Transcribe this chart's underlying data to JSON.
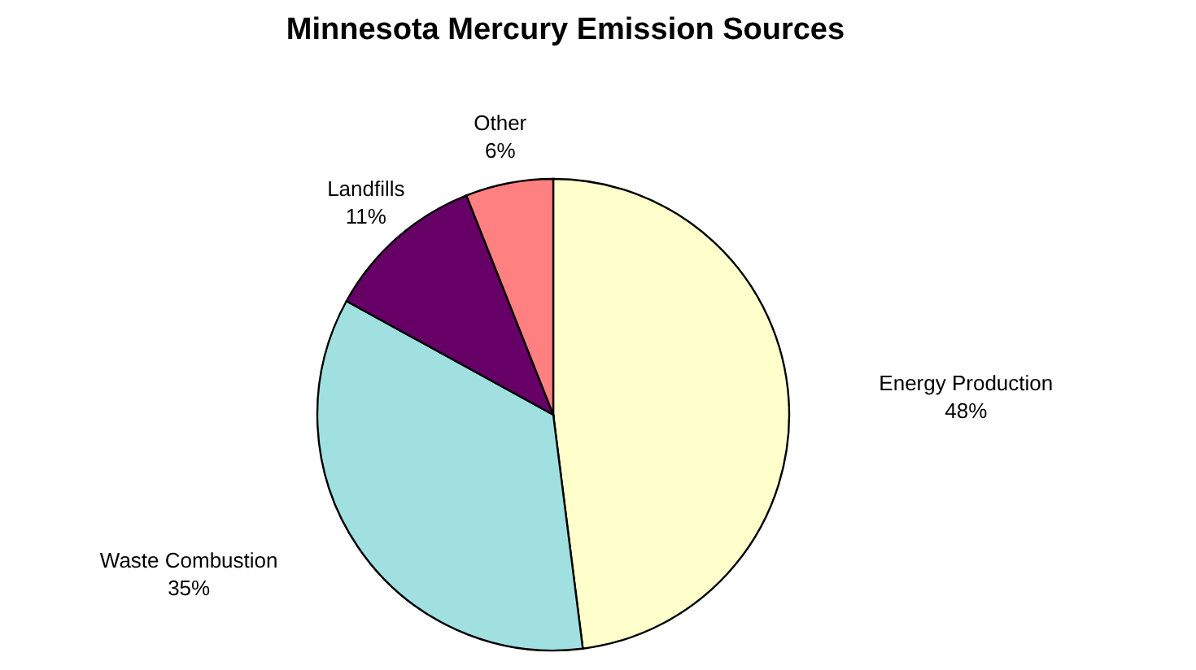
{
  "chart_data": {
    "type": "pie",
    "title": "Minnesota Mercury Emission Sources",
    "categories": [
      "Energy Production",
      "Waste Combustion",
      "Landfills",
      "Other"
    ],
    "values": [
      48,
      35,
      11,
      6
    ],
    "colors": [
      "#ffffcc",
      "#a0e0e0",
      "#660066",
      "#ff8080"
    ],
    "value_labels": [
      "48%",
      "35%",
      "11%",
      "6%"
    ],
    "legend": false
  }
}
